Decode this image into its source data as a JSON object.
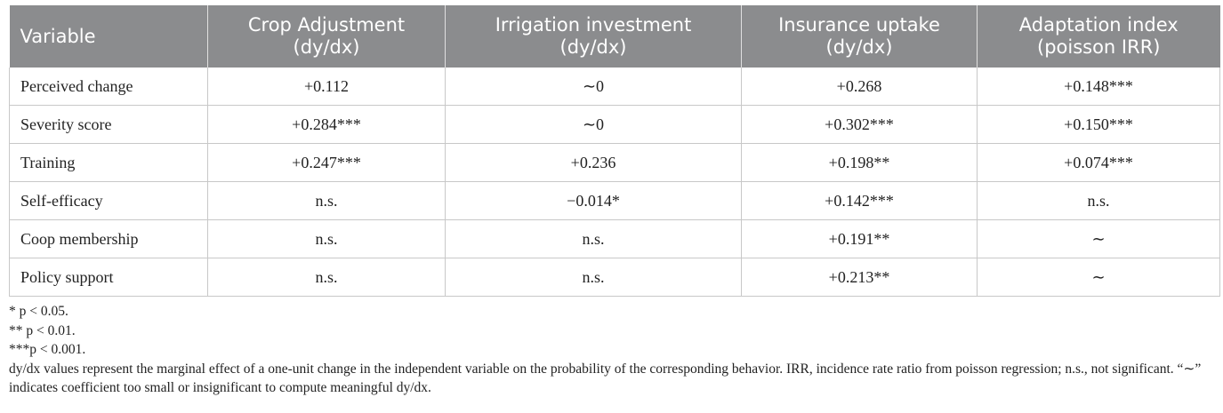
{
  "table": {
    "columns": [
      {
        "line1": "Variable",
        "line2": ""
      },
      {
        "line1": "Crop Adjustment",
        "line2": "(dy/dx)"
      },
      {
        "line1": "Irrigation investment",
        "line2": "(dy/dx)"
      },
      {
        "line1": "Insurance uptake",
        "line2": "(dy/dx)"
      },
      {
        "line1": "Adaptation index",
        "line2": "(poisson IRR)"
      }
    ],
    "rows": [
      [
        "Perceived change",
        "+0.112",
        "∼0",
        "+0.268",
        "+0.148***"
      ],
      [
        "Severity score",
        "+0.284***",
        "∼0",
        "+0.302***",
        "+0.150***"
      ],
      [
        "Training",
        "+0.247***",
        "+0.236",
        "+0.198**",
        "+0.074***"
      ],
      [
        "Self-efficacy",
        "n.s.",
        "−0.014*",
        "+0.142***",
        "n.s."
      ],
      [
        "Coop membership",
        "n.s.",
        "n.s.",
        "+0.191**",
        "∼"
      ],
      [
        "Policy support",
        "n.s.",
        "n.s.",
        "+0.213**",
        "∼"
      ]
    ]
  },
  "footnotes": [
    "* p < 0.05.",
    "** p < 0.01.",
    "***p < 0.001.",
    "dy/dx values represent the marginal effect of a one-unit change in the independent variable on the probability of the corresponding behavior. IRR, incidence rate ratio from poisson regression; n.s., not significant. “∼” indicates coefficient too small or insignificant to compute meaningful dy/dx."
  ]
}
